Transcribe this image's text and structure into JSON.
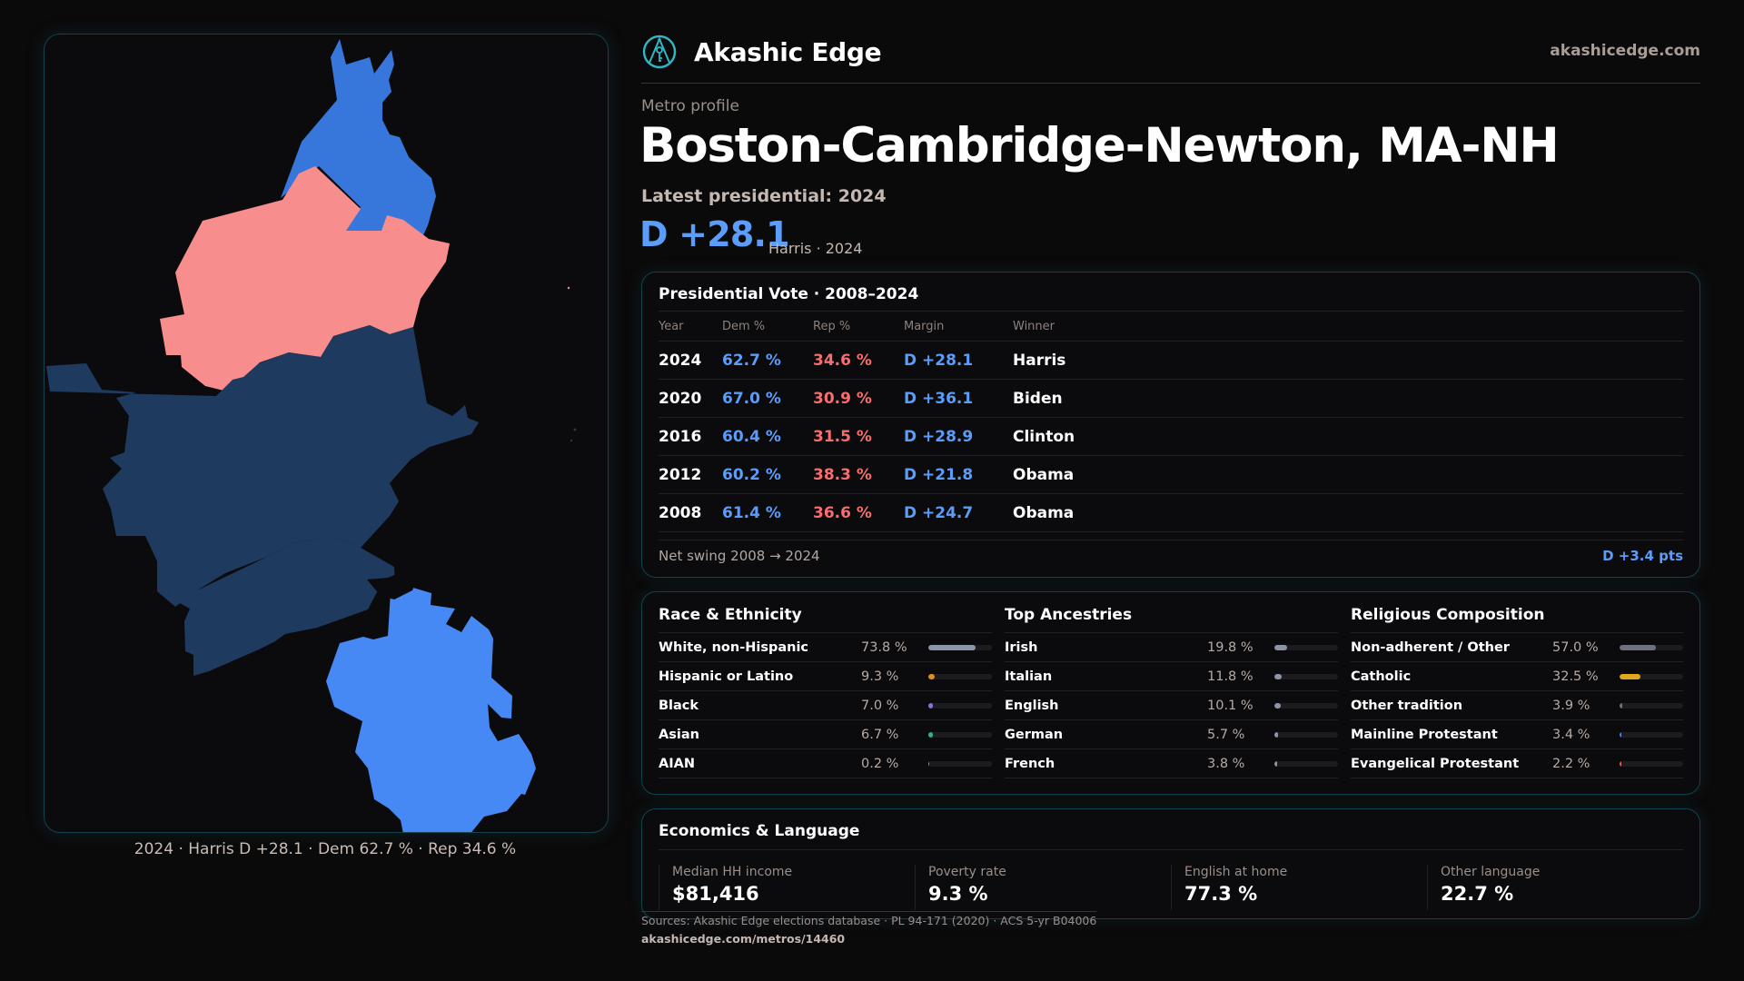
{
  "brand": {
    "name": "Akashic Edge",
    "site": "akashicedge.com",
    "logo_icon": "compass-key-emblem-icon",
    "accent": "#2fb7c8"
  },
  "header": {
    "eyebrow": "Metro profile",
    "title": "Boston-Cambridge-Newton, MA-NH",
    "latest_label": "Latest presidential: 2024",
    "margin": "D +28.1",
    "margin_sub": "Harris · 2024"
  },
  "map": {
    "caption": "2024 · Harris D +28.1 · Dem 62.7 % · Rep 34.6 %",
    "colors": {
      "strong_dem": "#1f3a5f",
      "dem": "#3777db",
      "lean_dem": "#4689f5",
      "rep": "#f78d8d"
    }
  },
  "presidential": {
    "title": "Presidential Vote · 2008–2024",
    "columns": [
      "Year",
      "Dem %",
      "Rep %",
      "Margin",
      "Winner"
    ],
    "rows": [
      {
        "year": "2024",
        "dem": "62.7 %",
        "rep": "34.6 %",
        "margin": "D +28.1",
        "winner": "Harris"
      },
      {
        "year": "2020",
        "dem": "67.0 %",
        "rep": "30.9 %",
        "margin": "D +36.1",
        "winner": "Biden"
      },
      {
        "year": "2016",
        "dem": "60.4 %",
        "rep": "31.5 %",
        "margin": "D +28.9",
        "winner": "Clinton"
      },
      {
        "year": "2012",
        "dem": "60.2 %",
        "rep": "38.3 %",
        "margin": "D +21.8",
        "winner": "Obama"
      },
      {
        "year": "2008",
        "dem": "61.4 %",
        "rep": "36.6 %",
        "margin": "D +24.7",
        "winner": "Obama"
      }
    ],
    "swing_label": "Net swing 2008 → 2024",
    "swing_value": "D +3.4 pts",
    "colors": {
      "dem": "#5b9dfa",
      "rep": "#f76e6e"
    }
  },
  "demographics": [
    {
      "title": "Race & Ethnicity",
      "items": [
        {
          "label": "White, non-Hispanic",
          "value": "73.8 %",
          "pct": 73.8,
          "color": "#8a95a8"
        },
        {
          "label": "Hispanic or Latino",
          "value": "9.3 %",
          "pct": 9.3,
          "color": "#e0901a"
        },
        {
          "label": "Black",
          "value": "7.0 %",
          "pct": 7.0,
          "color": "#8d6fe0"
        },
        {
          "label": "Asian",
          "value": "6.7 %",
          "pct": 6.7,
          "color": "#2fb38a"
        },
        {
          "label": "AIAN",
          "value": "0.2 %",
          "pct": 0.2,
          "color": "#8a95a8"
        }
      ]
    },
    {
      "title": "Top Ancestries",
      "items": [
        {
          "label": "Irish",
          "value": "19.8 %",
          "pct": 19.8,
          "color": "#8a95a8"
        },
        {
          "label": "Italian",
          "value": "11.8 %",
          "pct": 11.8,
          "color": "#8a95a8"
        },
        {
          "label": "English",
          "value": "10.1 %",
          "pct": 10.1,
          "color": "#8a95a8"
        },
        {
          "label": "German",
          "value": "5.7 %",
          "pct": 5.7,
          "color": "#8a95a8"
        },
        {
          "label": "French",
          "value": "3.8 %",
          "pct": 3.8,
          "color": "#8a95a8"
        }
      ]
    },
    {
      "title": "Religious Composition",
      "items": [
        {
          "label": "Non-adherent / Other",
          "value": "57.0 %",
          "pct": 57.0,
          "color": "#6d7180"
        },
        {
          "label": "Catholic",
          "value": "32.5 %",
          "pct": 32.5,
          "color": "#e0a81c"
        },
        {
          "label": "Other tradition",
          "value": "3.9 %",
          "pct": 3.9,
          "color": "#6d7180"
        },
        {
          "label": "Mainline Protestant",
          "value": "3.4 %",
          "pct": 3.4,
          "color": "#4a86e8"
        },
        {
          "label": "Evangelical Protestant",
          "value": "2.2 %",
          "pct": 2.2,
          "color": "#e06060"
        }
      ]
    }
  ],
  "economics": {
    "title": "Economics & Language",
    "stats": [
      {
        "label": "Median HH income",
        "value": "$81,416"
      },
      {
        "label": "Poverty rate",
        "value": "9.3 %"
      },
      {
        "label": "English at home",
        "value": "77.3 %"
      },
      {
        "label": "Other language",
        "value": "22.7 %"
      }
    ]
  },
  "footer": {
    "sources": "Sources: Akashic Edge elections database · PL 94-171 (2020) · ACS 5-yr B04006",
    "url": "akashicedge.com/metros/14460"
  }
}
